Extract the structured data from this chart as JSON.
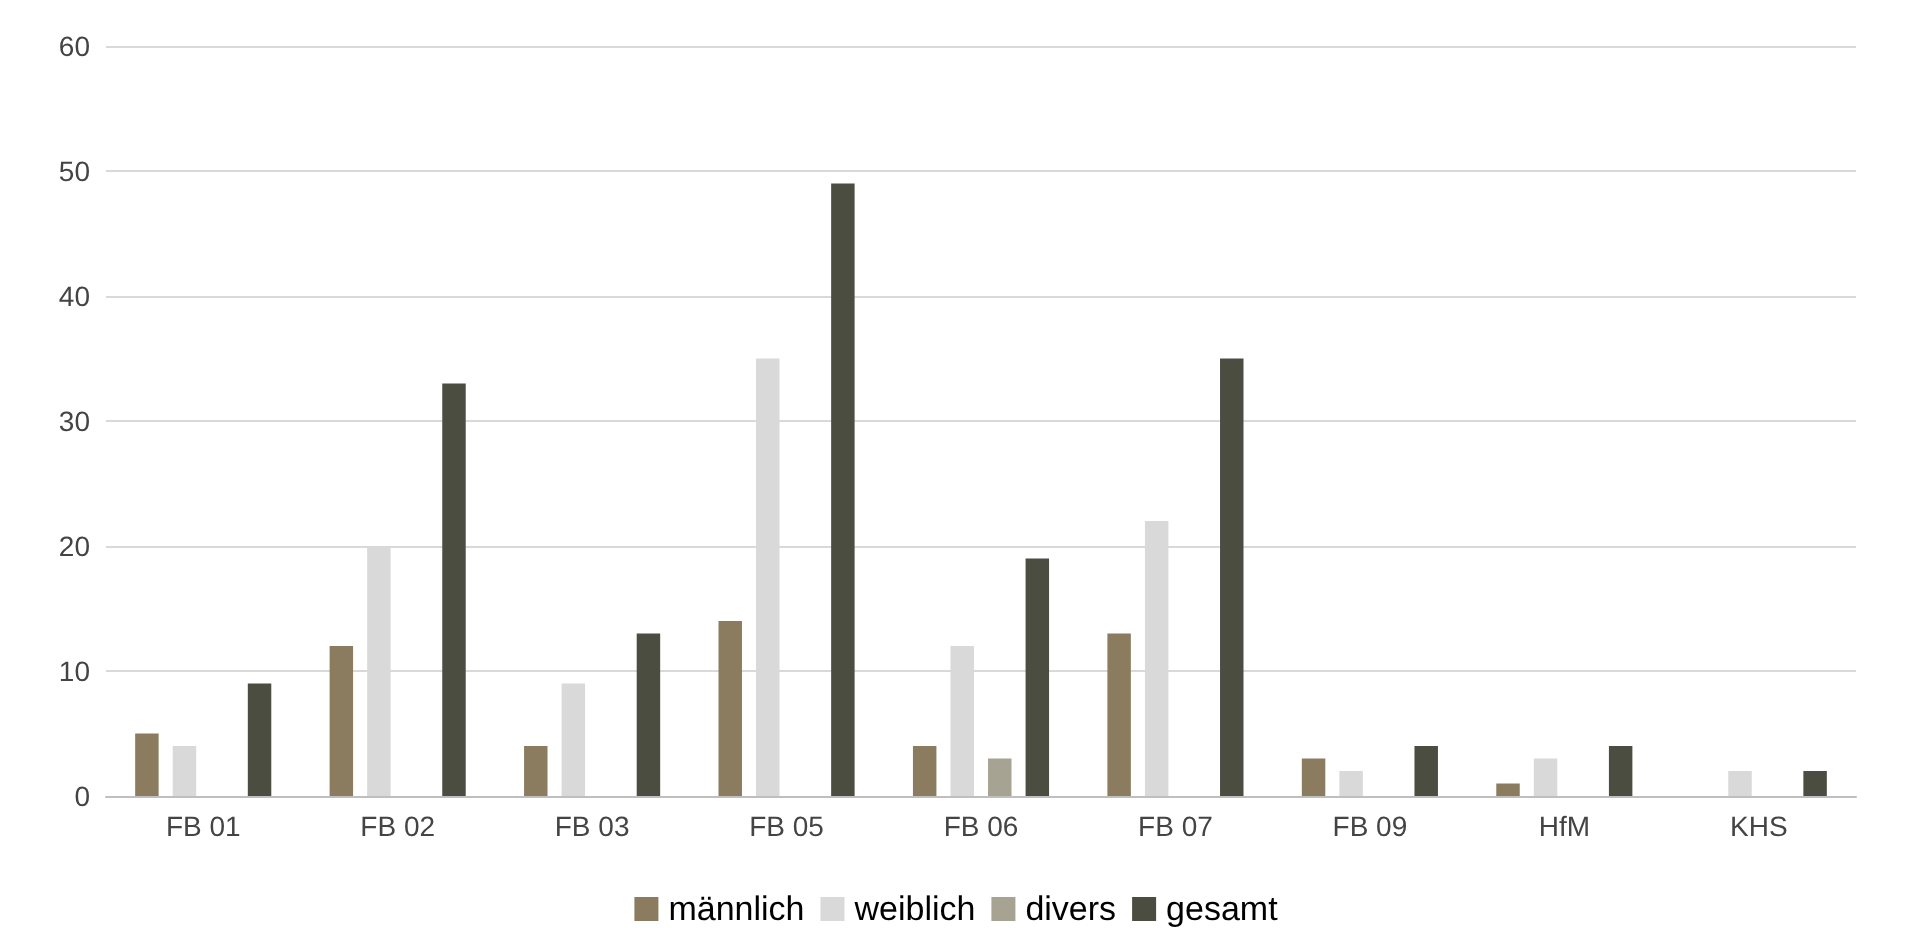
{
  "chart_data": {
    "type": "bar",
    "categories": [
      "FB 01",
      "FB 02",
      "FB 03",
      "FB 05",
      "FB 06",
      "FB 07",
      "FB 09",
      "HfM",
      "KHS"
    ],
    "series": [
      {
        "name": "männlich",
        "color": "#8b7c60",
        "values": [
          5,
          12,
          4,
          14,
          4,
          13,
          3,
          1,
          0
        ]
      },
      {
        "name": "weiblich",
        "color": "#d9d9d9",
        "values": [
          4,
          20,
          9,
          35,
          12,
          22,
          2,
          3,
          2
        ]
      },
      {
        "name": "divers",
        "color": "#a6a393",
        "values": [
          0,
          0,
          0,
          0,
          3,
          0,
          0,
          0,
          0
        ]
      },
      {
        "name": "gesamt",
        "color": "#4a4d3f",
        "values": [
          9,
          33,
          13,
          49,
          19,
          35,
          4,
          4,
          2
        ]
      }
    ],
    "ylim": [
      0,
      60
    ],
    "yticks": [
      0,
      10,
      20,
      30,
      40,
      50,
      60
    ],
    "grid": "y",
    "legend": "bottom"
  }
}
